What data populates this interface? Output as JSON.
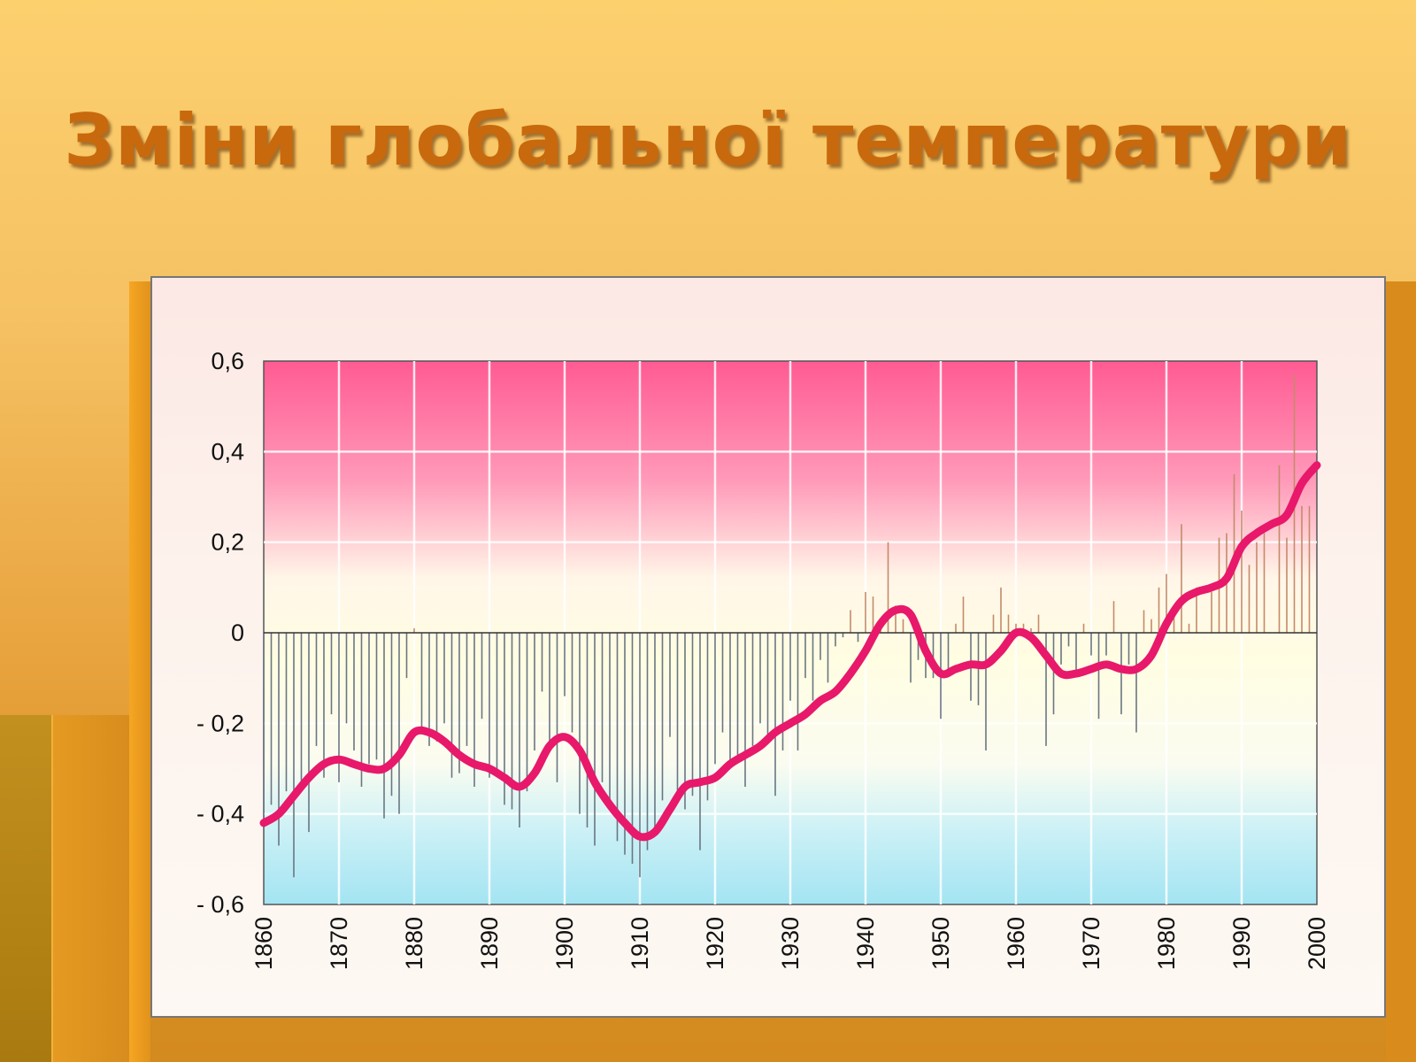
{
  "slide": {
    "title": "Зміни глобальної температури"
  },
  "colors": {
    "title": "#c8690d",
    "trend_line": "#e8186b",
    "bars": "#6a7682",
    "plot_top": "#ff5f96",
    "plot_mid": "#fffbe6",
    "plot_bottom": "#a8e8f4"
  },
  "chart_data": {
    "type": "line",
    "title": "",
    "xlabel": "",
    "ylabel": "",
    "xlim": [
      1860,
      2000
    ],
    "ylim": [
      -0.6,
      0.6
    ],
    "grid": true,
    "x_tick_labels": [
      "1860",
      "1870",
      "1880",
      "1890",
      "1900",
      "1910",
      "1920",
      "1930",
      "1940",
      "1950",
      "1960",
      "1970",
      "1980",
      "1990",
      "2000"
    ],
    "y_tick_labels": [
      {
        "value": 0.6,
        "label": "0,6"
      },
      {
        "value": 0.4,
        "label": "0,4"
      },
      {
        "value": 0.2,
        "label": "0,2"
      },
      {
        "value": 0,
        "label": "0"
      },
      {
        "value": -0.2,
        "label": "- 0,2"
      },
      {
        "value": -0.4,
        "label": "- 0,4"
      },
      {
        "value": -0.6,
        "label": "- 0,6"
      }
    ],
    "series": [
      {
        "kind": "bars",
        "x": [
          1860,
          1861,
          1862,
          1863,
          1864,
          1865,
          1866,
          1867,
          1868,
          1869,
          1870,
          1871,
          1872,
          1873,
          1874,
          1875,
          1876,
          1877,
          1878,
          1879,
          1880,
          1881,
          1882,
          1883,
          1884,
          1885,
          1886,
          1887,
          1888,
          1889,
          1890,
          1891,
          1892,
          1893,
          1894,
          1895,
          1896,
          1897,
          1898,
          1899,
          1900,
          1901,
          1902,
          1903,
          1904,
          1905,
          1906,
          1907,
          1908,
          1909,
          1910,
          1911,
          1912,
          1913,
          1914,
          1915,
          1916,
          1917,
          1918,
          1919,
          1920,
          1921,
          1922,
          1923,
          1924,
          1925,
          1926,
          1927,
          1928,
          1929,
          1930,
          1931,
          1932,
          1933,
          1934,
          1935,
          1936,
          1937,
          1938,
          1939,
          1940,
          1941,
          1942,
          1943,
          1944,
          1945,
          1946,
          1947,
          1948,
          1949,
          1950,
          1951,
          1952,
          1953,
          1954,
          1955,
          1956,
          1957,
          1958,
          1959,
          1960,
          1961,
          1962,
          1963,
          1964,
          1965,
          1966,
          1967,
          1968,
          1969,
          1970,
          1971,
          1972,
          1973,
          1974,
          1975,
          1976,
          1977,
          1978,
          1979,
          1980,
          1981,
          1982,
          1983,
          1984,
          1985,
          1986,
          1987,
          1988,
          1989,
          1990,
          1991,
          1992,
          1993,
          1994,
          1995,
          1996,
          1997,
          1998,
          1999
        ],
        "values": [
          -0.42,
          -0.38,
          -0.47,
          -0.35,
          -0.54,
          -0.33,
          -0.44,
          -0.25,
          -0.32,
          -0.18,
          -0.33,
          -0.2,
          -0.26,
          -0.34,
          -0.29,
          -0.28,
          -0.41,
          -0.36,
          -0.4,
          -0.1,
          0.01,
          -0.22,
          -0.25,
          -0.24,
          -0.2,
          -0.32,
          -0.31,
          -0.25,
          -0.34,
          -0.19,
          -0.32,
          -0.3,
          -0.38,
          -0.39,
          -0.43,
          -0.35,
          -0.26,
          -0.13,
          -0.25,
          -0.33,
          -0.14,
          -0.22,
          -0.4,
          -0.43,
          -0.47,
          -0.33,
          -0.38,
          -0.46,
          -0.49,
          -0.51,
          -0.54,
          -0.48,
          -0.43,
          -0.37,
          -0.23,
          -0.36,
          -0.39,
          -0.36,
          -0.48,
          -0.37,
          -0.29,
          -0.22,
          -0.3,
          -0.28,
          -0.34,
          -0.25,
          -0.2,
          -0.23,
          -0.36,
          -0.26,
          -0.15,
          -0.26,
          -0.1,
          -0.15,
          -0.06,
          -0.11,
          -0.03,
          -0.01,
          0.05,
          -0.02,
          0.09,
          0.08,
          0.03,
          0.2,
          0.06,
          0.03,
          -0.11,
          -0.06,
          -0.1,
          -0.1,
          -0.19,
          -0.09,
          0.02,
          0.08,
          -0.15,
          -0.16,
          -0.26,
          0.04,
          0.1,
          0.04,
          0.02,
          0.02,
          0.01,
          0.04,
          -0.25,
          -0.18,
          -0.07,
          -0.03,
          -0.09,
          0.02,
          -0.05,
          -0.19,
          -0.05,
          0.07,
          -0.18,
          -0.07,
          -0.22,
          0.05,
          0.03,
          0.1,
          0.13,
          0.05,
          0.24,
          0.02,
          0.1,
          0.0,
          0.09,
          0.21,
          0.22,
          0.35,
          0.27,
          0.15,
          0.2,
          0.22,
          0.0,
          0.37,
          0.21,
          0.57,
          0.28,
          0.28
        ]
      },
      {
        "kind": "line",
        "x": [
          1860,
          1862,
          1864,
          1866,
          1868,
          1870,
          1872,
          1874,
          1876,
          1878,
          1880,
          1882,
          1884,
          1886,
          1888,
          1890,
          1892,
          1894,
          1896,
          1898,
          1900,
          1902,
          1904,
          1906,
          1908,
          1910,
          1912,
          1914,
          1916,
          1918,
          1920,
          1922,
          1924,
          1926,
          1928,
          1930,
          1932,
          1934,
          1936,
          1938,
          1940,
          1942,
          1944,
          1946,
          1948,
          1950,
          1952,
          1954,
          1956,
          1958,
          1960,
          1962,
          1964,
          1966,
          1968,
          1970,
          1972,
          1974,
          1976,
          1978,
          1980,
          1982,
          1984,
          1986,
          1988,
          1990,
          1992,
          1994,
          1996,
          1998,
          2000
        ],
        "values": [
          -0.42,
          -0.4,
          -0.36,
          -0.32,
          -0.29,
          -0.28,
          -0.29,
          -0.3,
          -0.3,
          -0.27,
          -0.22,
          -0.22,
          -0.24,
          -0.27,
          -0.29,
          -0.3,
          -0.32,
          -0.34,
          -0.31,
          -0.25,
          -0.23,
          -0.26,
          -0.33,
          -0.38,
          -0.42,
          -0.45,
          -0.44,
          -0.39,
          -0.34,
          -0.33,
          -0.32,
          -0.29,
          -0.27,
          -0.25,
          -0.22,
          -0.2,
          -0.18,
          -0.15,
          -0.13,
          -0.09,
          -0.04,
          0.02,
          0.05,
          0.04,
          -0.04,
          -0.09,
          -0.08,
          -0.07,
          -0.07,
          -0.04,
          0.0,
          -0.01,
          -0.05,
          -0.09,
          -0.09,
          -0.08,
          -0.07,
          -0.08,
          -0.08,
          -0.05,
          0.02,
          0.07,
          0.09,
          0.1,
          0.12,
          0.19,
          0.22,
          0.24,
          0.26,
          0.33,
          0.37
        ]
      }
    ]
  }
}
